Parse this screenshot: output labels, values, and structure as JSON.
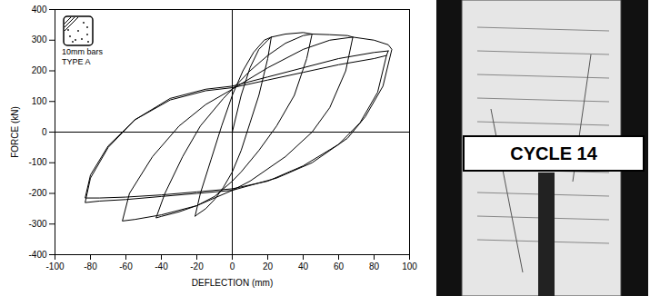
{
  "chart_data": {
    "type": "line",
    "x_label": "DEFLECTION (mm)",
    "y_label": "FORCE (kN)",
    "xlim": [
      -100,
      100
    ],
    "xticks": [
      -100,
      -80,
      -60,
      -40,
      -20,
      0,
      20,
      40,
      60,
      80,
      100
    ],
    "ylim": [
      -400,
      400
    ],
    "yticks": [
      -400,
      -300,
      -200,
      -100,
      0,
      100,
      200,
      300,
      400
    ],
    "annotations": [
      "10mm bars",
      "TYPE A"
    ],
    "series": [
      {
        "color": "#000000",
        "x": [
          0,
          5,
          10,
          15,
          20,
          22,
          20,
          15,
          10,
          5,
          0,
          -5,
          -10,
          -15,
          -20,
          -21,
          -18,
          -12,
          -6,
          0,
          6,
          12,
          18,
          22
        ],
        "values": [
          0,
          120,
          210,
          270,
          300,
          310,
          240,
          120,
          30,
          -60,
          -130,
          -180,
          -220,
          -250,
          -270,
          -275,
          -200,
          -90,
          20,
          120,
          200,
          260,
          300,
          310
        ]
      },
      {
        "color": "#000000",
        "x": [
          22,
          30,
          40,
          45,
          42,
          35,
          25,
          15,
          5,
          0,
          -10,
          -20,
          -30,
          -40,
          -43,
          -38,
          -28,
          -18,
          -5,
          0,
          10,
          20,
          30,
          40,
          45
        ],
        "values": [
          310,
          320,
          325,
          320,
          240,
          120,
          20,
          -60,
          -130,
          -160,
          -210,
          -240,
          -260,
          -275,
          -280,
          -200,
          -80,
          20,
          110,
          140,
          200,
          250,
          290,
          315,
          320
        ]
      },
      {
        "color": "#000000",
        "x": [
          45,
          55,
          65,
          68,
          64,
          55,
          45,
          30,
          10,
          0,
          -20,
          -40,
          -55,
          -62,
          -58,
          -45,
          -30,
          -15,
          0,
          20,
          40,
          55,
          68
        ],
        "values": [
          320,
          318,
          315,
          310,
          200,
          80,
          0,
          -80,
          -160,
          -190,
          -240,
          -270,
          -285,
          -290,
          -200,
          -80,
          20,
          90,
          140,
          210,
          270,
          300,
          310
        ]
      },
      {
        "color": "#000000",
        "x": [
          68,
          80,
          88,
          90,
          85,
          75,
          65,
          45,
          25,
          0,
          -20,
          -40,
          -60,
          -75,
          -83,
          -80,
          -70,
          -55,
          -35,
          -15,
          0,
          20,
          40,
          60,
          80,
          88
        ],
        "values": [
          310,
          300,
          285,
          270,
          150,
          50,
          -20,
          -100,
          -150,
          -190,
          -200,
          -210,
          -220,
          -225,
          -230,
          -150,
          -50,
          40,
          110,
          140,
          150,
          180,
          210,
          240,
          260,
          265
        ]
      },
      {
        "color": "#000000",
        "x": [
          88,
          87,
          82,
          72,
          60,
          40,
          20,
          0,
          -20,
          -40,
          -60,
          -75,
          -83,
          -80,
          -70,
          -55,
          -35,
          -15,
          0,
          20,
          40,
          60,
          80,
          87
        ],
        "values": [
          265,
          250,
          130,
          30,
          -40,
          -110,
          -160,
          -185,
          -195,
          -205,
          -212,
          -215,
          -215,
          -140,
          -45,
          40,
          105,
          135,
          145,
          170,
          195,
          220,
          240,
          250
        ]
      }
    ]
  },
  "photo": {
    "sign": "CYCLE 14"
  }
}
